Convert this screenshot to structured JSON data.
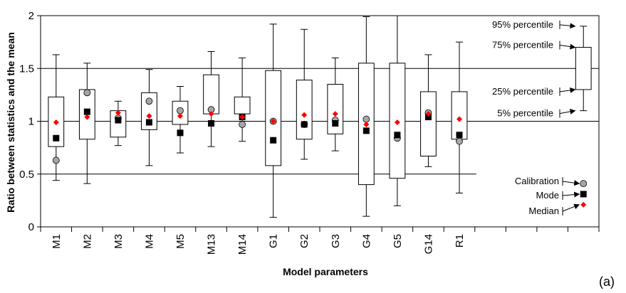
{
  "chart_data": {
    "type": "box",
    "ylabel": "Ratio between statistics and the mean",
    "xlabel": "Model parameters",
    "panel_label": "(a)",
    "ylim": [
      0,
      2
    ],
    "yticks": [
      "0",
      "0.5",
      "1",
      "1.5",
      "2"
    ],
    "categories": [
      "M1",
      "M2",
      "M3",
      "M4",
      "M5",
      "M13",
      "M14",
      "G1",
      "G2",
      "G3",
      "G4",
      "G5",
      "G14",
      "R1"
    ],
    "p5": [
      0.44,
      0.41,
      0.77,
      0.58,
      0.7,
      0.76,
      0.81,
      0.09,
      0.64,
      0.72,
      0.1,
      0.2,
      0.57,
      0.32
    ],
    "p25": [
      0.76,
      0.83,
      0.85,
      0.92,
      0.97,
      1.07,
      1.07,
      0.58,
      0.83,
      0.88,
      0.4,
      0.46,
      0.67,
      0.83
    ],
    "p75": [
      1.23,
      1.3,
      1.1,
      1.27,
      1.19,
      1.44,
      1.23,
      1.48,
      1.39,
      1.35,
      1.55,
      1.55,
      1.28,
      1.28
    ],
    "p95": [
      1.63,
      1.55,
      1.19,
      1.49,
      1.33,
      1.66,
      1.6,
      1.92,
      1.87,
      1.6,
      1.99,
      2.0,
      1.63,
      1.75
    ],
    "calibration": [
      0.63,
      1.27,
      1.03,
      1.19,
      1.1,
      1.11,
      0.97,
      1.0,
      0.97,
      1.01,
      1.02,
      0.84,
      1.08,
      0.81
    ],
    "mode": [
      0.84,
      1.09,
      1.01,
      0.99,
      0.89,
      0.98,
      1.04,
      0.82,
      0.97,
      0.98,
      0.91,
      0.87,
      1.04,
      0.87
    ],
    "median": [
      0.99,
      1.04,
      1.08,
      1.05,
      1.05,
      1.07,
      1.04,
      1.0,
      1.06,
      1.07,
      0.97,
      0.99,
      1.07,
      1.02
    ],
    "gridlines": [
      0.5,
      1,
      1.5
    ],
    "legend_box": {
      "labels": [
        "95% percentile",
        "75% percentile",
        "25% percentile",
        "5% percentile"
      ],
      "values": [
        1.9,
        1.7,
        1.3,
        1.1
      ]
    },
    "legend_markers": {
      "labels": [
        "Calibration",
        "Mode",
        "Median"
      ],
      "values": [
        0.41,
        0.31,
        0.21
      ]
    },
    "colors": {
      "median": "#ff0000",
      "calibration_fill": "#a6a6a6",
      "mode": "#000000",
      "box": "#000000"
    }
  }
}
